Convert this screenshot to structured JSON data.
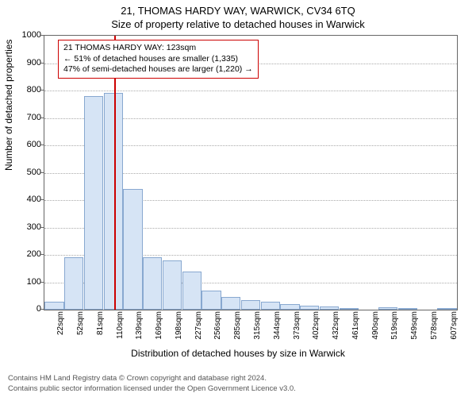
{
  "title_main": "21, THOMAS HARDY WAY, WARWICK, CV34 6TQ",
  "title_sub": "Size of property relative to detached houses in Warwick",
  "ylabel": "Number of detached properties",
  "xlabel": "Distribution of detached houses by size in Warwick",
  "chart": {
    "type": "histogram",
    "ylim": [
      0,
      1000
    ],
    "ytick_step": 100,
    "bar_color": "#d6e4f5",
    "bar_border_color": "#88a8d0",
    "grid_color": "#aaaaaa",
    "axis_color": "#666666",
    "background_color": "#ffffff",
    "marker_color": "#cc0000",
    "marker_x_value": 123,
    "x_min": 22,
    "x_max": 622,
    "xtick_labels": [
      "22sqm",
      "52sqm",
      "81sqm",
      "110sqm",
      "139sqm",
      "169sqm",
      "198sqm",
      "227sqm",
      "256sqm",
      "285sqm",
      "315sqm",
      "344sqm",
      "373sqm",
      "402sqm",
      "432sqm",
      "461sqm",
      "490sqm",
      "519sqm",
      "549sqm",
      "578sqm",
      "607sqm"
    ],
    "bars": [
      30,
      190,
      780,
      790,
      440,
      190,
      180,
      140,
      70,
      45,
      35,
      30,
      20,
      15,
      12,
      3,
      0,
      8,
      2,
      0,
      3
    ]
  },
  "annotation": {
    "line1": "21 THOMAS HARDY WAY: 123sqm",
    "line2": "← 51% of detached houses are smaller (1,335)",
    "line3": "47% of semi-detached houses are larger (1,220) →"
  },
  "footer": {
    "line1": "Contains HM Land Registry data © Crown copyright and database right 2024.",
    "line2": "Contains public sector information licensed under the Open Government Licence v3.0."
  }
}
